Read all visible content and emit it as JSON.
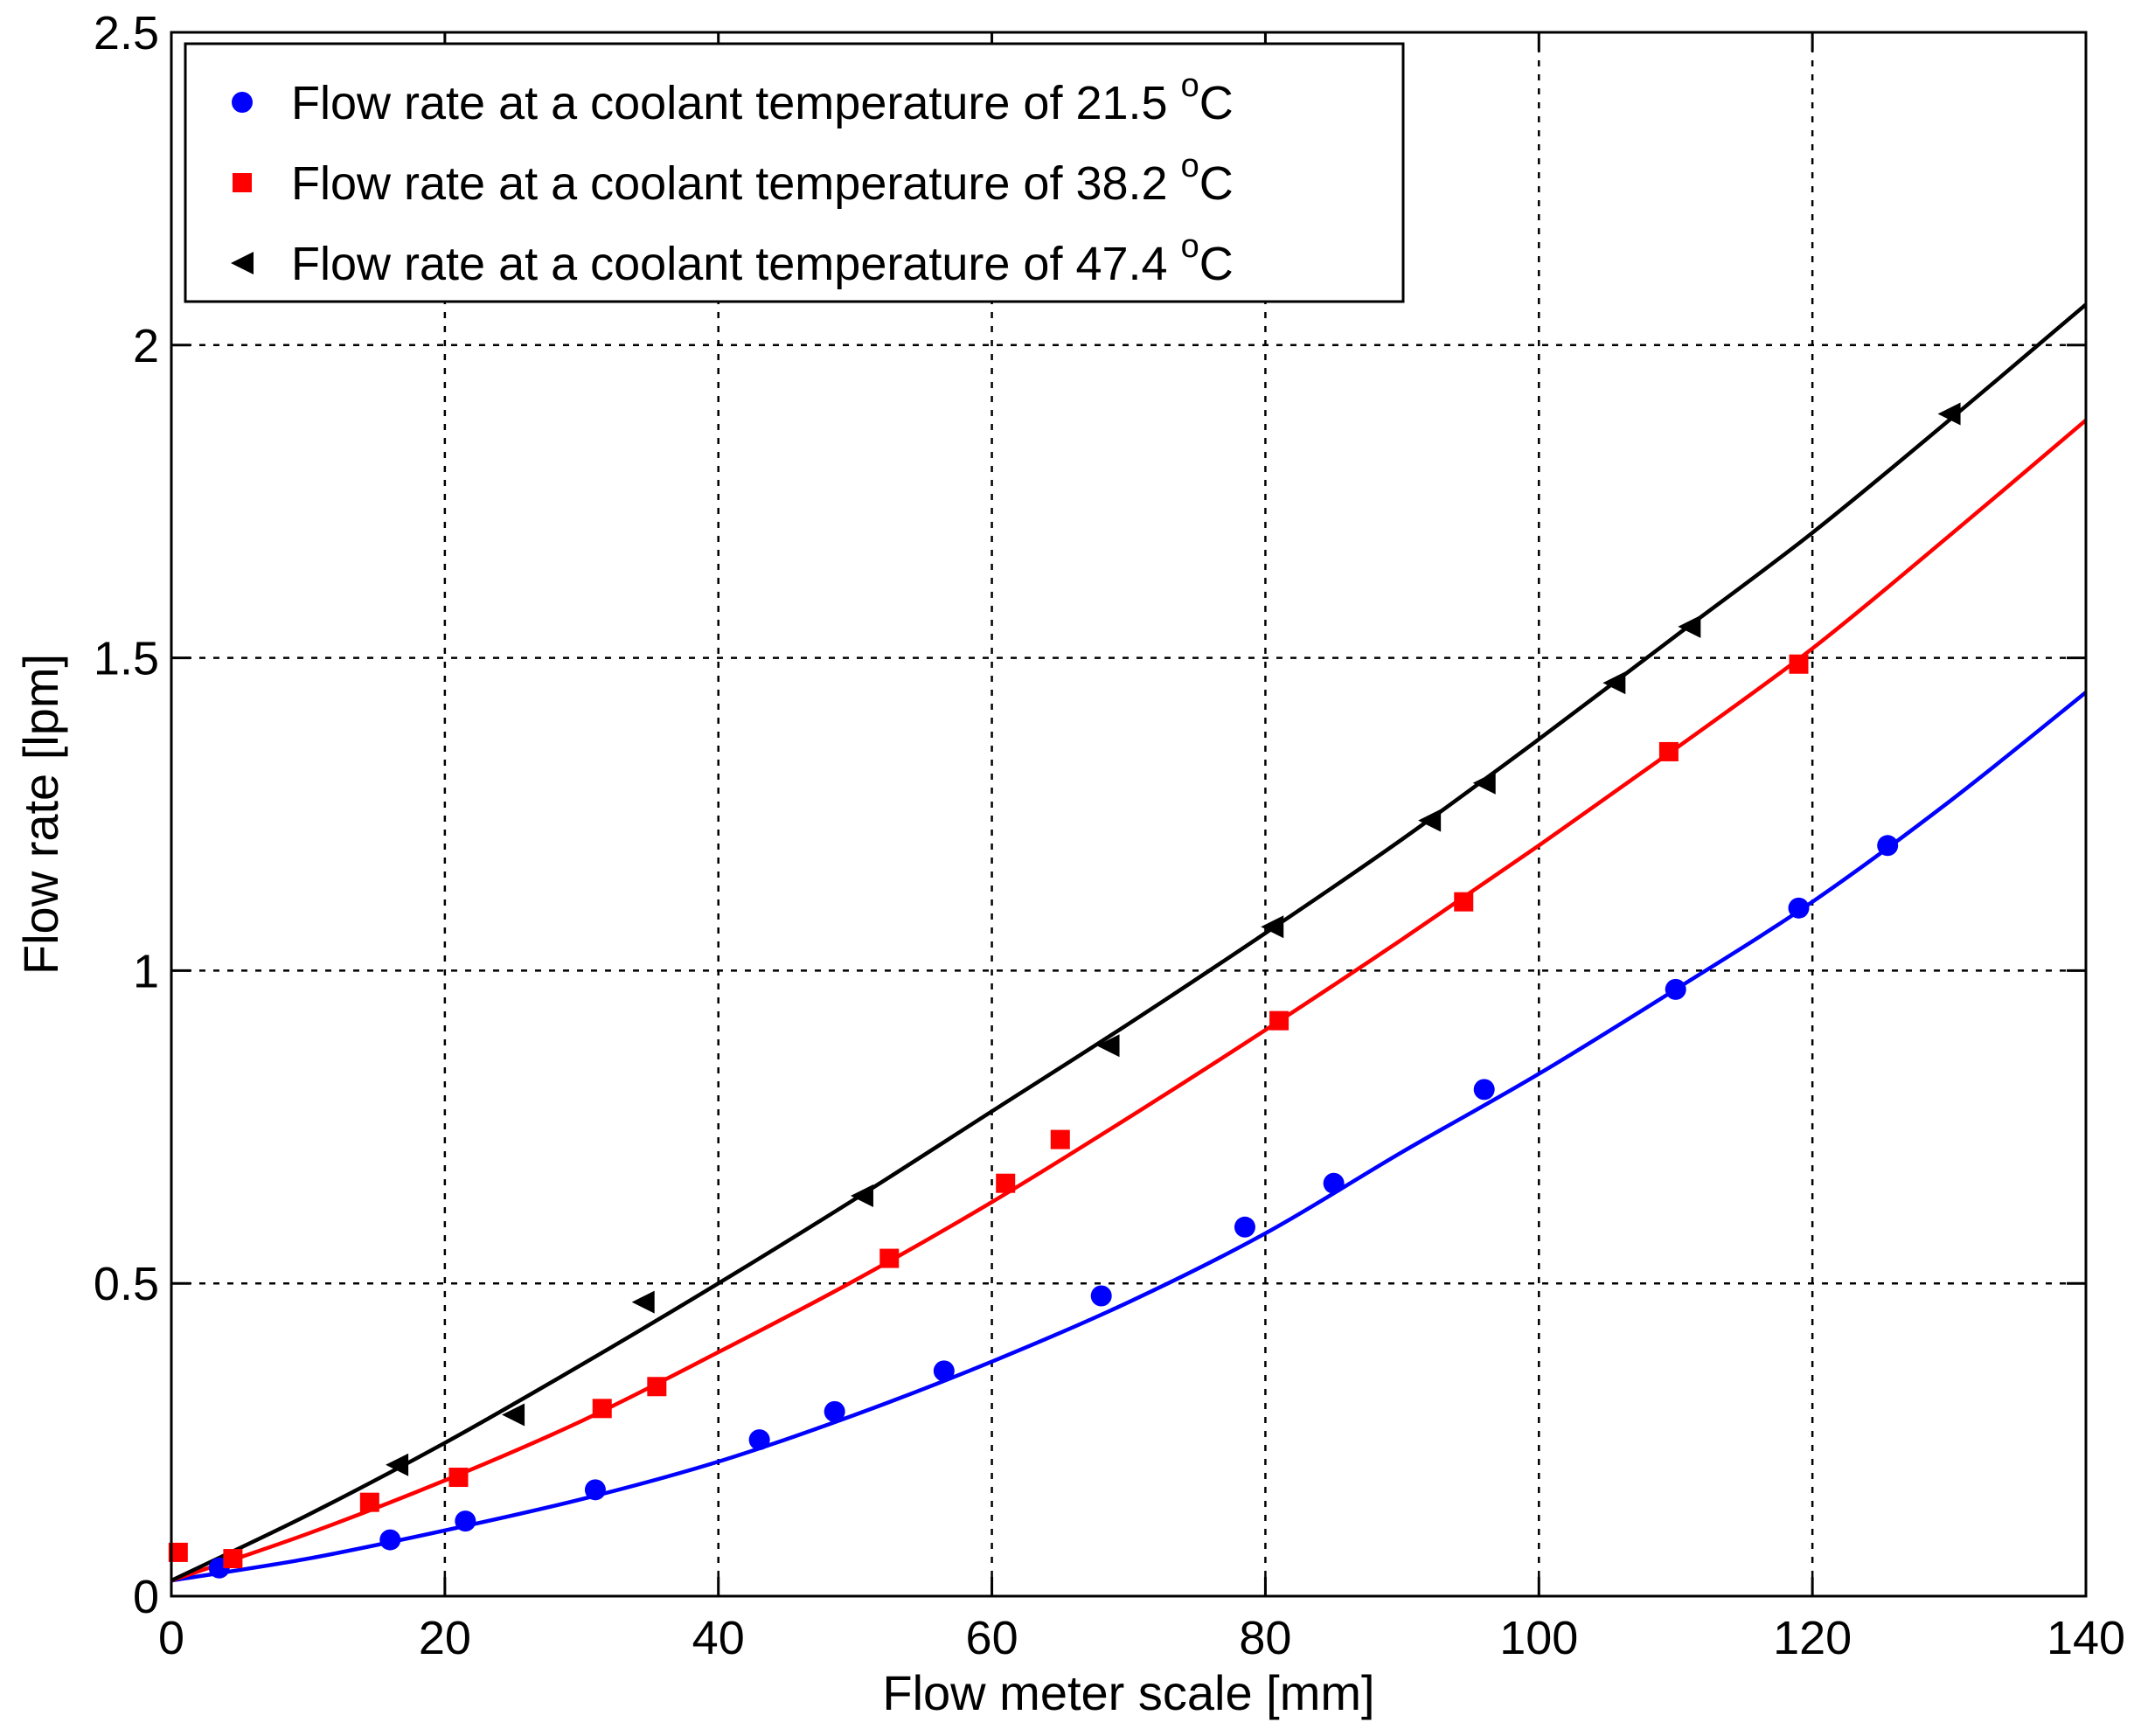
{
  "chart_data": {
    "type": "scatter",
    "xlabel": "Flow meter scale [mm]",
    "ylabel": "Flow rate [lpm]",
    "xlim": [
      0,
      140
    ],
    "ylim": [
      0,
      2.5
    ],
    "xticks": [
      0,
      20,
      40,
      60,
      80,
      100,
      120,
      140
    ],
    "xtick_labels": [
      "0",
      "20",
      "40",
      "60",
      "80",
      "100",
      "120",
      "140"
    ],
    "yticks": [
      0,
      0.5,
      1,
      1.5,
      2,
      2.5
    ],
    "ytick_labels": [
      "0",
      "0.5",
      "1",
      "1.5",
      "2",
      "2.5"
    ],
    "grid": true,
    "legend_position": "top-left",
    "series": [
      {
        "name": "Flow rate at a coolant temperature of 21.5 oC",
        "label_main": "Flow rate at a coolant temperature of 21.5 ",
        "label_sup": "o",
        "label_unit": "C",
        "color": "#0000ff",
        "marker": "circle",
        "points": [
          [
            3.5,
            0.045
          ],
          [
            16,
            0.09
          ],
          [
            21.5,
            0.12
          ],
          [
            31,
            0.17
          ],
          [
            43,
            0.25
          ],
          [
            48.5,
            0.295
          ],
          [
            56.5,
            0.36
          ],
          [
            68,
            0.48
          ],
          [
            78.5,
            0.59
          ],
          [
            85,
            0.66
          ],
          [
            96,
            0.81
          ],
          [
            110,
            0.97
          ],
          [
            119,
            1.1
          ],
          [
            125.5,
            1.2
          ]
        ],
        "fit_curve": [
          [
            0,
            0.025
          ],
          [
            10,
            0.06
          ],
          [
            20,
            0.105
          ],
          [
            30,
            0.155
          ],
          [
            40,
            0.215
          ],
          [
            50,
            0.29
          ],
          [
            60,
            0.375
          ],
          [
            70,
            0.47
          ],
          [
            80,
            0.58
          ],
          [
            90,
            0.71
          ],
          [
            100,
            0.835
          ],
          [
            110,
            0.97
          ],
          [
            120,
            1.11
          ],
          [
            130,
            1.27
          ],
          [
            140,
            1.445
          ]
        ]
      },
      {
        "name": "Flow rate at a coolant temperature of 38.2 oC",
        "label_main": "Flow rate at a coolant temperature of 38.2 ",
        "label_sup": "o",
        "label_unit": "C",
        "color": "#ff0000",
        "marker": "square",
        "points": [
          [
            0.5,
            0.07
          ],
          [
            4.5,
            0.06
          ],
          [
            14.5,
            0.15
          ],
          [
            21,
            0.19
          ],
          [
            31.5,
            0.3
          ],
          [
            35.5,
            0.335
          ],
          [
            52.5,
            0.54
          ],
          [
            61,
            0.66
          ],
          [
            65,
            0.73
          ],
          [
            81,
            0.92
          ],
          [
            94.5,
            1.11
          ],
          [
            109.5,
            1.35
          ],
          [
            119,
            1.49
          ]
        ],
        "fit_curve": [
          [
            0,
            0.025
          ],
          [
            10,
            0.1
          ],
          [
            20,
            0.185
          ],
          [
            30,
            0.28
          ],
          [
            40,
            0.39
          ],
          [
            50,
            0.505
          ],
          [
            60,
            0.63
          ],
          [
            70,
            0.765
          ],
          [
            80,
            0.905
          ],
          [
            90,
            1.05
          ],
          [
            100,
            1.2
          ],
          [
            110,
            1.355
          ],
          [
            120,
            1.515
          ],
          [
            130,
            1.695
          ],
          [
            140,
            1.88
          ]
        ]
      },
      {
        "name": "Flow rate at a coolant temperature of 47.4 oC",
        "label_main": "Flow rate at a coolant temperature of 47.4 ",
        "label_sup": "o",
        "label_unit": "C",
        "color": "#000000",
        "marker": "triangle-left",
        "points": [
          [
            16.5,
            0.21
          ],
          [
            25,
            0.29
          ],
          [
            34.5,
            0.47
          ],
          [
            50.5,
            0.64
          ],
          [
            68.5,
            0.88
          ],
          [
            80.5,
            1.07
          ],
          [
            92,
            1.24
          ],
          [
            96,
            1.3
          ],
          [
            105.5,
            1.46
          ],
          [
            111,
            1.55
          ],
          [
            130,
            1.89
          ]
        ],
        "fit_curve": [
          [
            0,
            0.025
          ],
          [
            10,
            0.13
          ],
          [
            20,
            0.245
          ],
          [
            30,
            0.37
          ],
          [
            40,
            0.5
          ],
          [
            50,
            0.635
          ],
          [
            60,
            0.775
          ],
          [
            70,
            0.915
          ],
          [
            80,
            1.06
          ],
          [
            90,
            1.21
          ],
          [
            100,
            1.37
          ],
          [
            110,
            1.535
          ],
          [
            120,
            1.7
          ],
          [
            130,
            1.88
          ],
          [
            140,
            2.065
          ]
        ]
      }
    ]
  }
}
